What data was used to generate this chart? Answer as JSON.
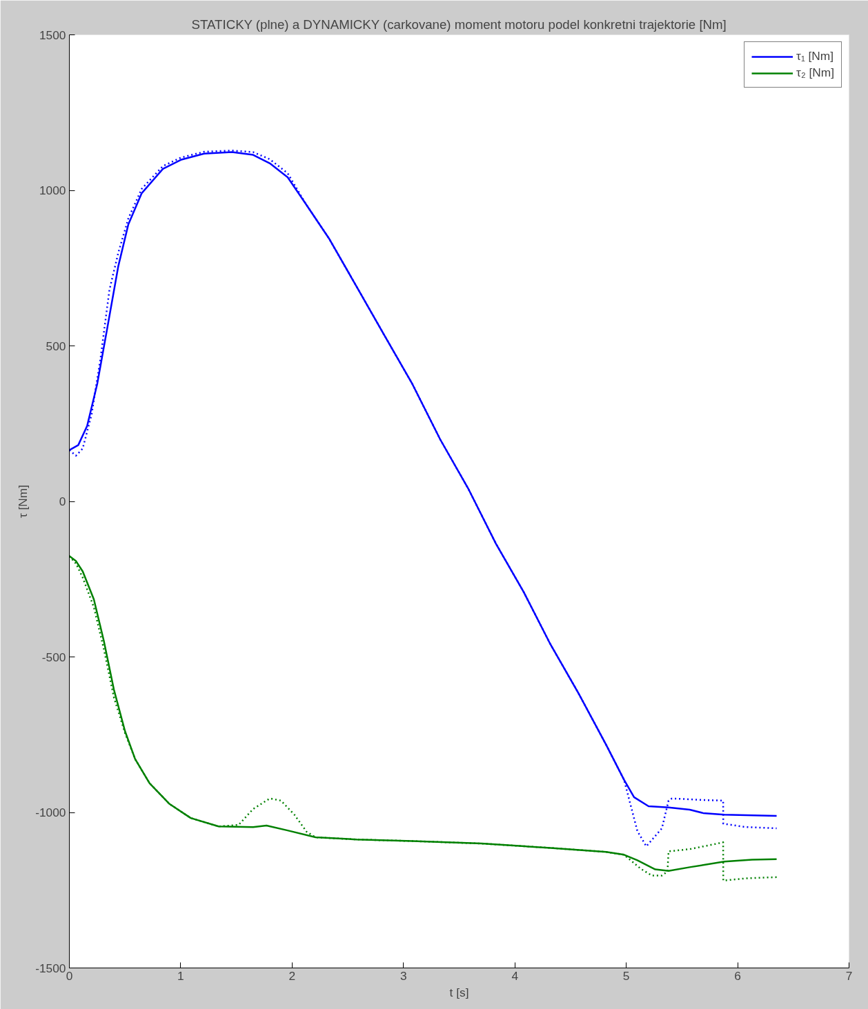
{
  "chart_data": {
    "type": "line",
    "title": "STATICKY (plne) a DYNAMICKY (carkovane) moment motoru podel konkretni trajektorie [Nm]",
    "xlabel": "t [s]",
    "ylabel": "τ [Nm]",
    "xlim": [
      0,
      7
    ],
    "ylim": [
      -1500,
      1500
    ],
    "xticks": [
      0,
      1,
      2,
      3,
      4,
      5,
      6,
      7
    ],
    "yticks": [
      -1500,
      -1000,
      -500,
      0,
      500,
      1000,
      1500
    ],
    "grid": false,
    "legend": "top right",
    "series": [
      {
        "name": "τ₁ [Nm]",
        "color": "#0000ff",
        "line_style": "solid",
        "x": [
          0,
          0.08,
          0.16,
          0.25,
          0.34,
          0.44,
          0.53,
          0.65,
          0.84,
          1.0,
          1.21,
          1.46,
          1.65,
          1.8,
          1.96,
          2.12,
          2.33,
          2.58,
          2.83,
          3.08,
          3.33,
          3.58,
          3.83,
          4.08,
          4.32,
          4.57,
          4.82,
          4.98,
          5.07,
          5.2,
          5.38,
          5.57,
          5.69,
          5.88,
          6.35
        ],
        "values": [
          165,
          181,
          243,
          377,
          556,
          757,
          891,
          991,
          1069,
          1098,
          1118,
          1123,
          1114,
          1087,
          1042,
          958,
          846,
          690,
          533,
          377,
          199,
          42,
          -136,
          -292,
          -460,
          -616,
          -783,
          -895,
          -951,
          -980,
          -984,
          -991,
          -1002,
          -1007,
          -1011
        ]
      },
      {
        "name": "τ₂ [Nm]",
        "color": "#008000",
        "line_style": "solid",
        "x": [
          0,
          0.06,
          0.12,
          0.22,
          0.31,
          0.4,
          0.5,
          0.59,
          0.72,
          0.9,
          1.09,
          1.34,
          1.65,
          1.77,
          1.96,
          2.21,
          2.58,
          3.08,
          3.7,
          4.32,
          4.82,
          4.98,
          5.1,
          5.26,
          5.38,
          5.57,
          5.88,
          6.13,
          6.35
        ],
        "values": [
          -176,
          -192,
          -225,
          -315,
          -449,
          -605,
          -739,
          -828,
          -906,
          -973,
          -1018,
          -1045,
          -1047,
          -1042,
          -1058,
          -1080,
          -1087,
          -1092,
          -1100,
          -1114,
          -1127,
          -1136,
          -1154,
          -1183,
          -1188,
          -1176,
          -1158,
          -1152,
          -1150
        ]
      },
      {
        "color": "#0000ff",
        "line_style": "dotted",
        "x": [
          0,
          0.06,
          0.12,
          0.2,
          0.28,
          0.36,
          0.44,
          0.53,
          0.65,
          0.84,
          1.0,
          1.21,
          1.46,
          1.65,
          1.8,
          1.96,
          2.12,
          2.33,
          2.58,
          2.83,
          3.08,
          3.33,
          3.58,
          3.83,
          4.08,
          4.32,
          4.57,
          4.82,
          4.98,
          5.1,
          5.18,
          5.32,
          5.38,
          5.41,
          5.69,
          5.87,
          5.871,
          6.07,
          6.35
        ],
        "values": [
          165,
          147,
          170,
          280,
          460,
          680,
          800,
          910,
          1005,
          1078,
          1105,
          1124,
          1128,
          1123,
          1100,
          1055,
          958,
          846,
          690,
          533,
          377,
          199,
          42,
          -136,
          -292,
          -460,
          -616,
          -783,
          -895,
          -1060,
          -1109,
          -1051,
          -962,
          -955,
          -960,
          -962,
          -1036,
          -1047,
          -1051
        ]
      },
      {
        "color": "#008000",
        "line_style": "dotted",
        "x": [
          0,
          0.06,
          0.12,
          0.22,
          0.31,
          0.4,
          0.5,
          0.59,
          0.72,
          0.9,
          1.09,
          1.34,
          1.52,
          1.65,
          1.8,
          1.9,
          2.02,
          2.13,
          2.21,
          2.58,
          3.08,
          3.7,
          4.32,
          4.82,
          4.98,
          5.13,
          5.23,
          5.32,
          5.37,
          5.38,
          5.57,
          5.82,
          5.87,
          5.871,
          6.07,
          6.35
        ],
        "values": [
          -176,
          -200,
          -245,
          -340,
          -475,
          -630,
          -745,
          -828,
          -906,
          -973,
          -1018,
          -1045,
          -1040,
          -989,
          -955,
          -962,
          -1007,
          -1062,
          -1080,
          -1087,
          -1092,
          -1100,
          -1114,
          -1127,
          -1136,
          -1181,
          -1203,
          -1203,
          -1190,
          -1125,
          -1118,
          -1100,
          -1096,
          -1219,
          -1212,
          -1208
        ]
      }
    ]
  }
}
